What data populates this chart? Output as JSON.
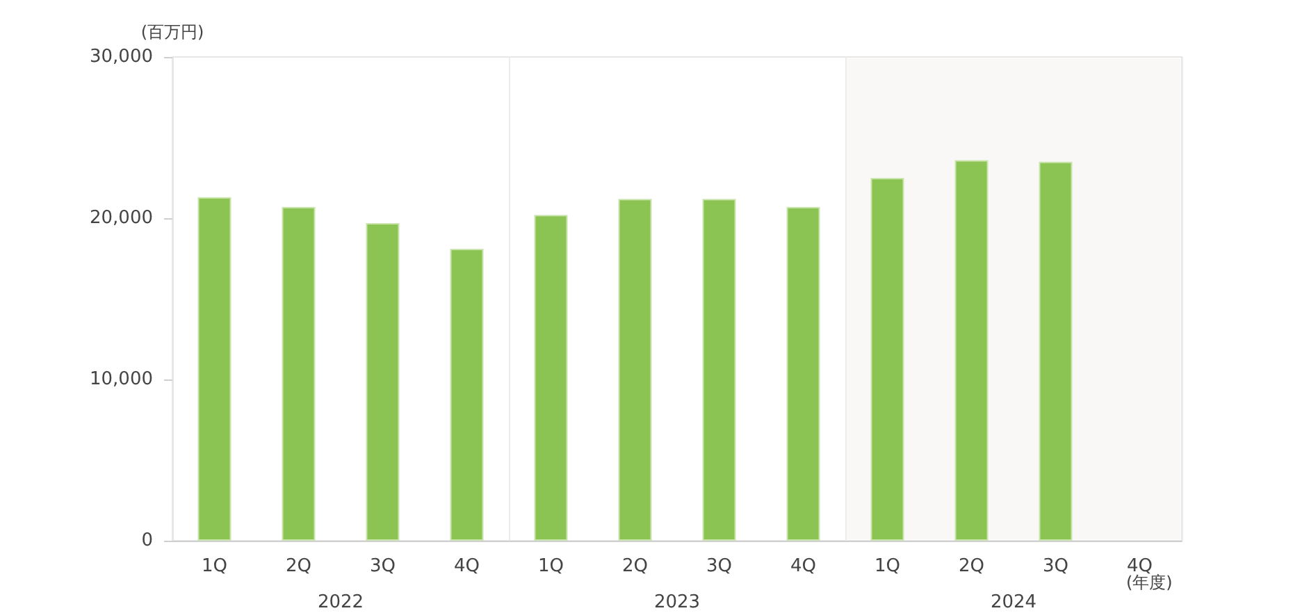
{
  "chart_data": {
    "type": "bar",
    "ylabel": "(百万円)",
    "xlabel": "(年度)",
    "categories": [
      "1Q",
      "2Q",
      "3Q",
      "4Q",
      "1Q",
      "2Q",
      "3Q",
      "4Q",
      "1Q",
      "2Q",
      "3Q",
      "4Q"
    ],
    "values": [
      21300,
      20700,
      19700,
      18100,
      20200,
      21200,
      21200,
      20700,
      22500,
      23600,
      23500,
      null
    ],
    "color": "#8cc453",
    "ylim": [
      0,
      30000
    ],
    "yticks": [
      {
        "value": 0,
        "label": "0"
      },
      {
        "value": 10000,
        "label": "10,000"
      },
      {
        "value": 20000,
        "label": "20,000"
      },
      {
        "value": 30000,
        "label": "30,000"
      }
    ],
    "annotations": [
      "2022",
      "2023",
      "2024"
    ],
    "grid": false
  }
}
